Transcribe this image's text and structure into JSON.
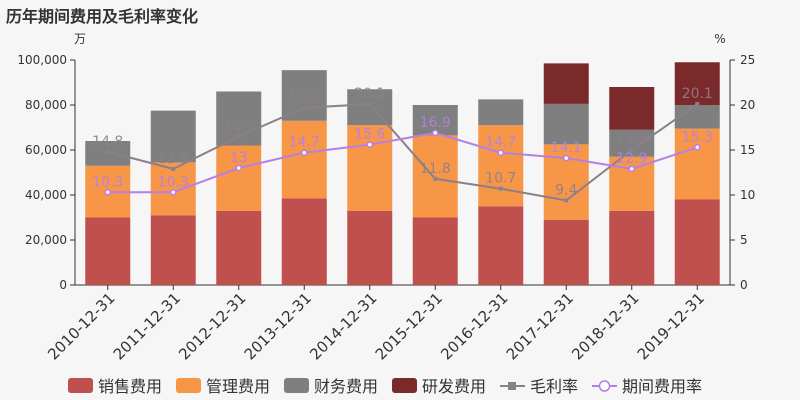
{
  "title": "历年期间费用及毛利率变化",
  "chart_data": {
    "type": "bar",
    "title": "历年期间费用及毛利率变化",
    "left_unit": "万",
    "right_unit": "%",
    "categories": [
      "2010-12-31",
      "2011-12-31",
      "2012-12-31",
      "2013-12-31",
      "2014-12-31",
      "2015-12-31",
      "2016-12-31",
      "2017-12-31",
      "2018-12-31",
      "2019-12-31"
    ],
    "y_left": {
      "min": 0,
      "max": 100000,
      "ticks": [
        0,
        20000,
        40000,
        60000,
        80000,
        100000
      ],
      "tick_labels": [
        "0",
        "20,000",
        "40,000",
        "60,000",
        "80,000",
        "100,000"
      ]
    },
    "y_right": {
      "min": 0,
      "max": 25,
      "ticks": [
        0,
        5,
        10,
        15,
        20,
        25
      ],
      "tick_labels": [
        "0",
        "5",
        "10",
        "15",
        "20",
        "25"
      ]
    },
    "stacked": true,
    "series": [
      {
        "name": "销售费用",
        "kind": "bar",
        "color": "#c0504d",
        "values": [
          30000,
          31000,
          33000,
          38500,
          33000,
          30000,
          35000,
          29000,
          33000,
          38000
        ]
      },
      {
        "name": "管理费用",
        "kind": "bar",
        "color": "#f79646",
        "values": [
          23000,
          23500,
          29000,
          34500,
          38000,
          36500,
          36000,
          33500,
          24000,
          31500
        ]
      },
      {
        "name": "财务费用",
        "kind": "bar",
        "color": "#7f7f7f",
        "values": [
          11000,
          23000,
          24000,
          22500,
          16000,
          13500,
          11500,
          18000,
          12000,
          10500
        ]
      },
      {
        "name": "研发费用",
        "kind": "bar",
        "color": "#7a2a2a",
        "values": [
          0,
          0,
          0,
          0,
          0,
          0,
          0,
          18000,
          19000,
          19000
        ]
      },
      {
        "name": "毛利率",
        "kind": "line",
        "axis": "right",
        "color": "#8c7f8c",
        "values": [
          14.8,
          12.9,
          16.5,
          19.7,
          20.1,
          11.8,
          10.7,
          9.4,
          15.0,
          20.1
        ],
        "labels": [
          "14.8",
          "12.9",
          "16.5",
          "19.7",
          "20.1",
          "11.8",
          "10.7",
          "9.4",
          "15.0",
          "20.1"
        ]
      },
      {
        "name": "期间费用率",
        "kind": "line",
        "axis": "right",
        "color": "#b57fe6",
        "values": [
          10.3,
          10.3,
          13.0,
          14.7,
          15.6,
          16.9,
          14.7,
          14.1,
          12.9,
          15.3
        ],
        "labels": [
          "10.3",
          "10.3",
          "13",
          "14.7",
          "15.6",
          "16.9",
          "14.7",
          "14.1",
          "12.9",
          "15.3"
        ]
      }
    ],
    "legend_position": "bottom",
    "grid": false
  }
}
